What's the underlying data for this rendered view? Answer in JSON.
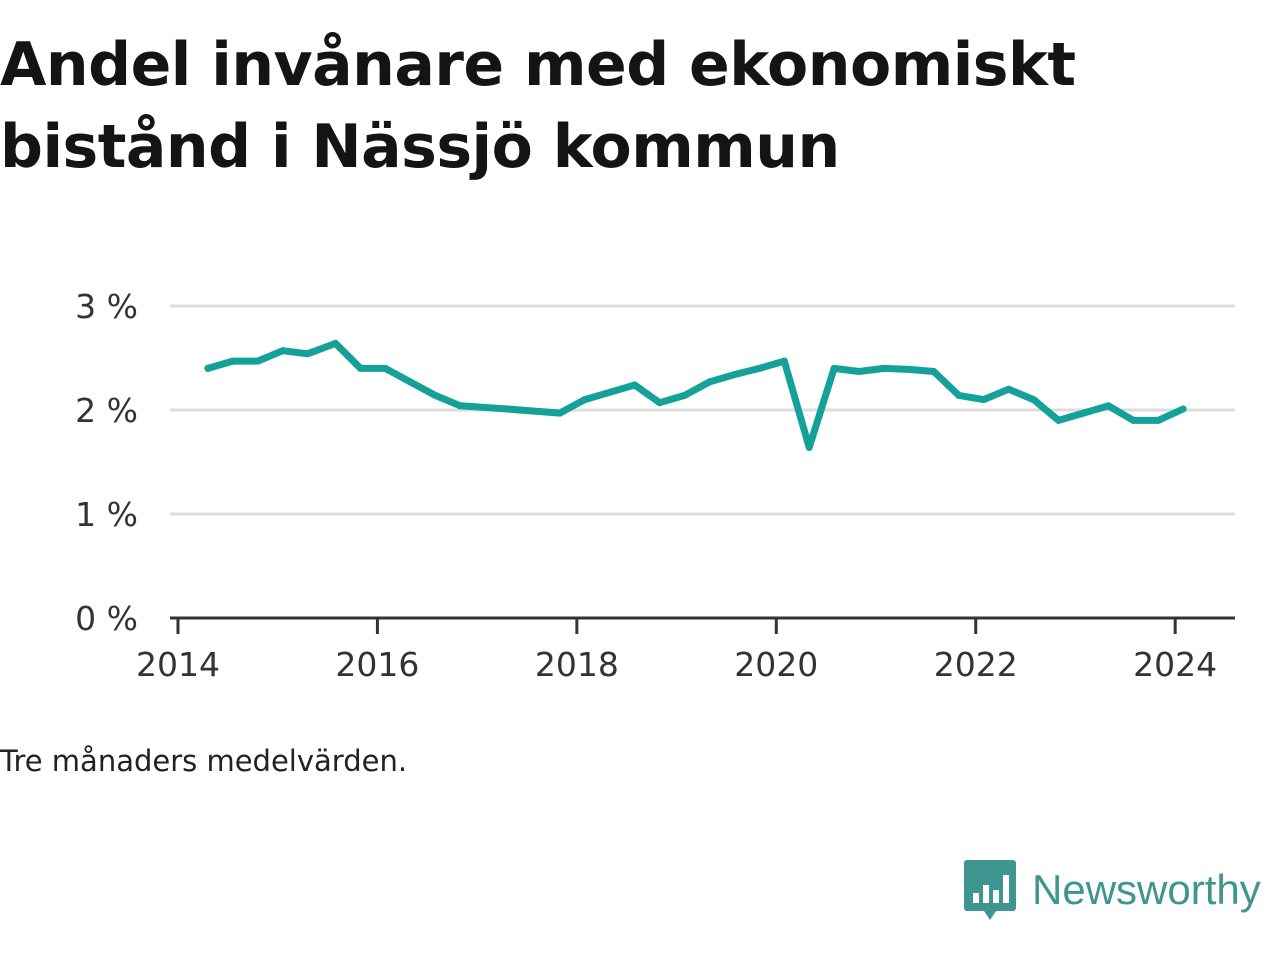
{
  "title": "Andel invånare med ekonomiskt bistånd i Nässjö kommun",
  "note": "Tre månaders medelvärden.",
  "brand": {
    "name": "Newsworthy"
  },
  "colors": {
    "line": "#14a19a",
    "grid": "#dddddd",
    "axis": "#333333",
    "brand": "#3f958f"
  },
  "chart_data": {
    "type": "line",
    "title": "Andel invånare med ekonomiskt bistånd i Nässjö kommun",
    "xlabel": "",
    "ylabel": "",
    "x_ticks": [
      "2014",
      "2016",
      "2018",
      "2020",
      "2022",
      "2024"
    ],
    "y_ticks": [
      "0 %",
      "1 %",
      "2 %",
      "3 %"
    ],
    "xlim": [
      2013.92,
      2024.6
    ],
    "ylim": [
      0,
      3
    ],
    "grid": true,
    "series": [
      {
        "values": [
          {
            "x": 2014.3,
            "y": 2.4
          },
          {
            "x": 2014.55,
            "y": 2.47
          },
          {
            "x": 2014.8,
            "y": 2.47
          },
          {
            "x": 2015.05,
            "y": 2.57
          },
          {
            "x": 2015.3,
            "y": 2.54
          },
          {
            "x": 2015.58,
            "y": 2.64
          },
          {
            "x": 2015.83,
            "y": 2.4
          },
          {
            "x": 2016.08,
            "y": 2.4
          },
          {
            "x": 2016.33,
            "y": 2.27
          },
          {
            "x": 2016.58,
            "y": 2.14
          },
          {
            "x": 2016.83,
            "y": 2.04
          },
          {
            "x": 2017.3,
            "y": 2.01
          },
          {
            "x": 2017.83,
            "y": 1.97
          },
          {
            "x": 2018.08,
            "y": 2.1
          },
          {
            "x": 2018.33,
            "y": 2.17
          },
          {
            "x": 2018.58,
            "y": 2.24
          },
          {
            "x": 2018.83,
            "y": 2.07
          },
          {
            "x": 2019.08,
            "y": 2.14
          },
          {
            "x": 2019.33,
            "y": 2.27
          },
          {
            "x": 2019.58,
            "y": 2.34
          },
          {
            "x": 2019.83,
            "y": 2.4
          },
          {
            "x": 2020.08,
            "y": 2.47
          },
          {
            "x": 2020.33,
            "y": 1.64
          },
          {
            "x": 2020.58,
            "y": 2.4
          },
          {
            "x": 2020.83,
            "y": 2.37
          },
          {
            "x": 2021.08,
            "y": 2.4
          },
          {
            "x": 2021.33,
            "y": 2.39
          },
          {
            "x": 2021.58,
            "y": 2.37
          },
          {
            "x": 2021.83,
            "y": 2.14
          },
          {
            "x": 2022.08,
            "y": 2.1
          },
          {
            "x": 2022.33,
            "y": 2.2
          },
          {
            "x": 2022.58,
            "y": 2.1
          },
          {
            "x": 2022.83,
            "y": 1.9
          },
          {
            "x": 2023.08,
            "y": 1.97
          },
          {
            "x": 2023.33,
            "y": 2.04
          },
          {
            "x": 2023.58,
            "y": 1.9
          },
          {
            "x": 2023.83,
            "y": 1.9
          },
          {
            "x": 2024.08,
            "y": 2.01
          }
        ]
      }
    ]
  }
}
